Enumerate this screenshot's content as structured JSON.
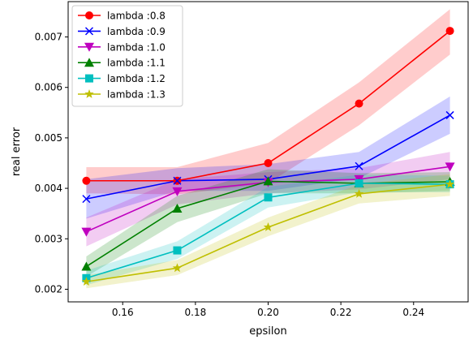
{
  "chart_data": {
    "type": "line",
    "title": "",
    "xlabel": "epsilon",
    "ylabel": "real error",
    "x": [
      0.15,
      0.175,
      0.2,
      0.225,
      0.25
    ],
    "xlim": [
      0.145,
      0.255
    ],
    "ylim": [
      0.00175,
      0.0077
    ],
    "xticks": [
      0.16,
      0.18,
      0.2,
      0.22,
      0.24
    ],
    "xtick_labels": [
      "0.16",
      "0.18",
      "0.20",
      "0.22",
      "0.24"
    ],
    "yticks": [
      0.002,
      0.003,
      0.004,
      0.005,
      0.006,
      0.007
    ],
    "ytick_labels": [
      "0.002",
      "0.003",
      "0.004",
      "0.005",
      "0.006",
      "0.007"
    ],
    "grid": false,
    "legend_position": "upper-left",
    "series": [
      {
        "name": "lambda :0.8",
        "color": "#ff0000",
        "marker": "circle",
        "values": [
          0.00415,
          0.00415,
          0.0045,
          0.00568,
          0.00712
        ],
        "lower": [
          0.0039,
          0.00388,
          0.0041,
          0.00525,
          0.00665
        ],
        "upper": [
          0.00442,
          0.00442,
          0.0049,
          0.0061,
          0.00755
        ]
      },
      {
        "name": "lambda :0.9",
        "color": "#0000ff",
        "marker": "x",
        "values": [
          0.00379,
          0.00415,
          0.00418,
          0.00444,
          0.00545
        ],
        "lower": [
          0.0034,
          0.00395,
          0.00395,
          0.0042,
          0.00508
        ],
        "upper": [
          0.00418,
          0.0044,
          0.00448,
          0.00472,
          0.00582
        ]
      },
      {
        "name": "lambda :1.0",
        "color": "#bf00bf",
        "marker": "triangle-down",
        "values": [
          0.00314,
          0.00394,
          0.00412,
          0.00418,
          0.00443
        ],
        "lower": [
          0.00285,
          0.00368,
          0.0039,
          0.00398,
          0.00418
        ],
        "upper": [
          0.00342,
          0.00418,
          0.00432,
          0.0044,
          0.00472
        ]
      },
      {
        "name": "lambda :1.1",
        "color": "#008000",
        "marker": "triangle-up",
        "values": [
          0.00245,
          0.0036,
          0.00414,
          0.0041,
          0.00413
        ],
        "lower": [
          0.00225,
          0.00333,
          0.0039,
          0.0039,
          0.00395
        ],
        "upper": [
          0.00265,
          0.00385,
          0.00438,
          0.0043,
          0.00432
        ]
      },
      {
        "name": "lambda :1.2",
        "color": "#00bfbf",
        "marker": "square",
        "values": [
          0.00222,
          0.00277,
          0.00382,
          0.0041,
          0.00408
        ],
        "lower": [
          0.00208,
          0.0026,
          0.00362,
          0.00392,
          0.00392
        ],
        "upper": [
          0.00237,
          0.00295,
          0.00403,
          0.00427,
          0.00425
        ]
      },
      {
        "name": "lambda :1.3",
        "color": "#bfbf00",
        "marker": "star",
        "values": [
          0.00215,
          0.00242,
          0.00323,
          0.00389,
          0.00408
        ],
        "lower": [
          0.00202,
          0.00228,
          0.00305,
          0.0037,
          0.00385
        ],
        "upper": [
          0.00228,
          0.00258,
          0.00342,
          0.00408,
          0.00428
        ]
      }
    ]
  }
}
